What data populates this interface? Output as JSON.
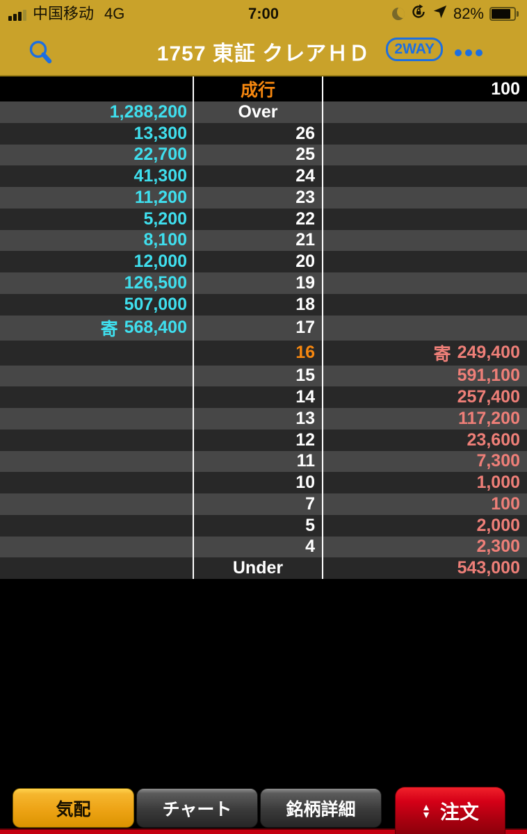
{
  "colors": {
    "gold": "#c9a22a",
    "blue": "#1d6fe0",
    "cyan": "#3fdfee",
    "salmon": "#ee7f78",
    "orange": "#f6870f",
    "tab_red": "#c40011"
  },
  "status_bar": {
    "carrier": "中国移动",
    "network": "4G",
    "time": "7:00",
    "battery_percent": "82%"
  },
  "header": {
    "title": "1757 東証 クレアＨＤ",
    "two_way_label": "2WAY"
  },
  "board": {
    "rows": [
      {
        "price": "成行",
        "price_type": "market",
        "bid": "",
        "ask": "100",
        "ask_style": "neutral"
      },
      {
        "price": "Over",
        "price_type": "label",
        "bid": "1,288,200",
        "ask": ""
      },
      {
        "price": "26",
        "price_type": "num",
        "bid": "13,300",
        "ask": ""
      },
      {
        "price": "25",
        "price_type": "num",
        "bid": "22,700",
        "ask": ""
      },
      {
        "price": "24",
        "price_type": "num",
        "bid": "41,300",
        "ask": ""
      },
      {
        "price": "23",
        "price_type": "num",
        "bid": "11,200",
        "ask": ""
      },
      {
        "price": "22",
        "price_type": "num",
        "bid": "5,200",
        "ask": ""
      },
      {
        "price": "21",
        "price_type": "num",
        "bid": "8,100",
        "ask": ""
      },
      {
        "price": "20",
        "price_type": "num",
        "bid": "12,000",
        "ask": ""
      },
      {
        "price": "19",
        "price_type": "num",
        "bid": "126,500",
        "ask": ""
      },
      {
        "price": "18",
        "price_type": "num",
        "bid": "507,000",
        "ask": ""
      },
      {
        "price": "17",
        "price_type": "num",
        "bid": "568,400",
        "bid_marker": "寄",
        "ask": ""
      },
      {
        "price": "16",
        "price_type": "active",
        "bid": "",
        "ask": "249,400",
        "ask_marker": "寄"
      },
      {
        "price": "15",
        "price_type": "num",
        "bid": "",
        "ask": "591,100"
      },
      {
        "price": "14",
        "price_type": "num",
        "bid": "",
        "ask": "257,400"
      },
      {
        "price": "13",
        "price_type": "num",
        "bid": "",
        "ask": "117,200"
      },
      {
        "price": "12",
        "price_type": "num",
        "bid": "",
        "ask": "23,600"
      },
      {
        "price": "11",
        "price_type": "num",
        "bid": "",
        "ask": "7,300"
      },
      {
        "price": "10",
        "price_type": "num",
        "bid": "",
        "ask": "1,000"
      },
      {
        "price": "7",
        "price_type": "num",
        "bid": "",
        "ask": "100"
      },
      {
        "price": "5",
        "price_type": "num",
        "bid": "",
        "ask": "2,000"
      },
      {
        "price": "4",
        "price_type": "num",
        "bid": "",
        "ask": "2,300"
      },
      {
        "price": "Under",
        "price_type": "label",
        "bid": "",
        "ask": "543,000"
      }
    ]
  },
  "tabs": [
    {
      "label": "気配",
      "active": true
    },
    {
      "label": "チャート",
      "active": false
    },
    {
      "label": "銘柄詳細",
      "active": false
    }
  ],
  "order_button": {
    "label": "注文"
  }
}
